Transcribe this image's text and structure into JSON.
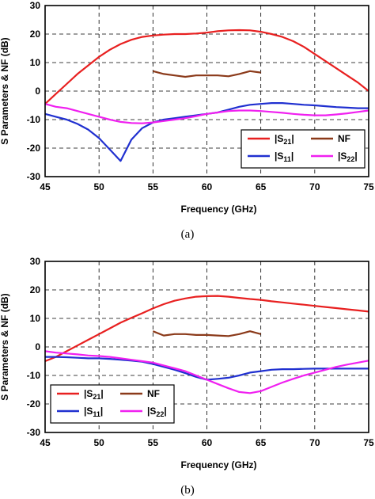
{
  "chart_data": [
    {
      "type": "line",
      "xlabel": "Frequency (GHz)",
      "ylabel": "S Parameters & NF (dB)",
      "caption": "(a)",
      "xlim": [
        45,
        75
      ],
      "ylim": [
        -30,
        30
      ],
      "xticks": [
        "45",
        "50",
        "55",
        "60",
        "65",
        "70",
        "75"
      ],
      "yticks": [
        "30",
        "20",
        "10",
        "0",
        "-10",
        "-20",
        "-30"
      ],
      "grid": true,
      "legend_position": "bottom-right",
      "series": [
        {
          "name": "|S21|",
          "sub": "21",
          "color": "#e82020",
          "x": [
            45,
            46,
            47,
            48,
            49,
            50,
            51,
            52,
            53,
            54,
            55,
            56,
            57,
            58,
            59,
            60,
            61,
            62,
            63,
            64,
            65,
            66,
            67,
            68,
            69,
            70,
            71,
            72,
            73,
            74,
            75
          ],
          "y": [
            -4.5,
            -1,
            2.5,
            6,
            9,
            12,
            14.5,
            16.5,
            18,
            19,
            19.5,
            19.8,
            20,
            20,
            20.2,
            20.5,
            21,
            21.3,
            21.4,
            21.3,
            20.8,
            20,
            19,
            17.5,
            15.5,
            13,
            10.5,
            8,
            5.5,
            3,
            0
          ]
        },
        {
          "name": "NF",
          "color": "#8b3a1a",
          "x": [
            55,
            56,
            57,
            58,
            59,
            60,
            61,
            62,
            63,
            64,
            65
          ],
          "y": [
            7,
            6,
            5.5,
            5,
            5.5,
            5.5,
            5.5,
            5.2,
            6,
            7,
            6.5
          ]
        },
        {
          "name": "|S11|",
          "sub": "11",
          "color": "#2030d0",
          "x": [
            45,
            46,
            47,
            48,
            49,
            50,
            51,
            52,
            53,
            54,
            55,
            56,
            57,
            58,
            59,
            60,
            61,
            62,
            63,
            64,
            65,
            66,
            67,
            68,
            69,
            70,
            71,
            72,
            73,
            74,
            75
          ],
          "y": [
            -8,
            -9,
            -10,
            -11.5,
            -13.5,
            -16.5,
            -20.5,
            -24.5,
            -17,
            -13,
            -11,
            -10,
            -9.5,
            -9,
            -8.5,
            -8,
            -7.5,
            -6.5,
            -5.5,
            -4.8,
            -4.5,
            -4.2,
            -4.2,
            -4.5,
            -4.8,
            -5,
            -5.3,
            -5.6,
            -5.8,
            -6,
            -6
          ]
        },
        {
          "name": "|S22|",
          "sub": "22",
          "color": "#f020f0",
          "x": [
            45,
            46,
            47,
            48,
            49,
            50,
            51,
            52,
            53,
            54,
            55,
            56,
            57,
            58,
            59,
            60,
            61,
            62,
            63,
            64,
            65,
            66,
            67,
            68,
            69,
            70,
            71,
            72,
            73,
            74,
            75
          ],
          "y": [
            -4.5,
            -5.5,
            -6,
            -7,
            -8,
            -9,
            -10,
            -10.8,
            -11.2,
            -11.3,
            -11,
            -10.5,
            -10,
            -9.5,
            -8.8,
            -8,
            -7.5,
            -7,
            -6.8,
            -6.8,
            -7,
            -7.3,
            -7.6,
            -8,
            -8.3,
            -8.5,
            -8.5,
            -8.2,
            -7.8,
            -7.3,
            -6.8
          ]
        }
      ]
    },
    {
      "type": "line",
      "xlabel": "Frequency (GHz)",
      "ylabel": "S Parameters & NF (dB)",
      "caption": "(b)",
      "xlim": [
        45,
        75
      ],
      "ylim": [
        -30,
        30
      ],
      "xticks": [
        "45",
        "50",
        "55",
        "60",
        "65",
        "70",
        "75"
      ],
      "yticks": [
        "30",
        "20",
        "10",
        "0",
        "-10",
        "-20",
        "-30"
      ],
      "grid": true,
      "legend_position": "bottom-left",
      "series": [
        {
          "name": "|S21|",
          "sub": "21",
          "color": "#e82020",
          "x": [
            45,
            46,
            47,
            48,
            49,
            50,
            51,
            52,
            53,
            54,
            55,
            56,
            57,
            58,
            59,
            60,
            61,
            62,
            63,
            64,
            65,
            66,
            67,
            68,
            69,
            70,
            71,
            72,
            73,
            74,
            75
          ],
          "y": [
            -5,
            -3.5,
            -1.5,
            0.5,
            2.5,
            4.5,
            6.5,
            8.5,
            10.2,
            11.8,
            13.5,
            15,
            16.2,
            17,
            17.6,
            17.8,
            17.9,
            17.6,
            17.2,
            16.8,
            16.5,
            16,
            15.6,
            15.2,
            14.8,
            14.4,
            14,
            13.6,
            13.2,
            12.8,
            12.4
          ]
        },
        {
          "name": "NF",
          "color": "#8b3a1a",
          "x": [
            55,
            56,
            57,
            58,
            59,
            60,
            61,
            62,
            63,
            64,
            65
          ],
          "y": [
            5.5,
            4,
            4.5,
            4.5,
            4.2,
            4.2,
            4,
            3.8,
            4.5,
            5.5,
            4.5
          ]
        },
        {
          "name": "|S11|",
          "sub": "11",
          "color": "#2030d0",
          "x": [
            45,
            46,
            47,
            48,
            49,
            50,
            51,
            52,
            53,
            54,
            55,
            56,
            57,
            58,
            59,
            60,
            61,
            62,
            63,
            64,
            65,
            66,
            67,
            68,
            69,
            70,
            71,
            72,
            73,
            74,
            75
          ],
          "y": [
            -3.5,
            -3.5,
            -3.6,
            -3.8,
            -4,
            -4,
            -4.2,
            -4.5,
            -4.8,
            -5.2,
            -6,
            -7,
            -8,
            -9.2,
            -10.5,
            -11.5,
            -11.2,
            -10.8,
            -10,
            -9,
            -8.5,
            -8,
            -7.8,
            -7.8,
            -7.7,
            -7.6,
            -7.6,
            -7.6,
            -7.6,
            -7.6,
            -7.6
          ]
        },
        {
          "name": "|S22|",
          "sub": "22",
          "color": "#f020f0",
          "x": [
            45,
            46,
            47,
            48,
            49,
            50,
            51,
            52,
            53,
            54,
            55,
            56,
            57,
            58,
            59,
            60,
            61,
            62,
            63,
            64,
            65,
            66,
            67,
            68,
            69,
            70,
            71,
            72,
            73,
            74,
            75
          ],
          "y": [
            -1.5,
            -2,
            -2.3,
            -2.6,
            -3,
            -3.2,
            -3.5,
            -4,
            -4.5,
            -5,
            -5.5,
            -6.5,
            -7.5,
            -8.5,
            -10,
            -11.5,
            -13,
            -14.5,
            -15.8,
            -16.2,
            -15.5,
            -14,
            -12.5,
            -11.2,
            -10,
            -9,
            -8,
            -7,
            -6.2,
            -5.5,
            -4.8
          ]
        }
      ]
    }
  ]
}
